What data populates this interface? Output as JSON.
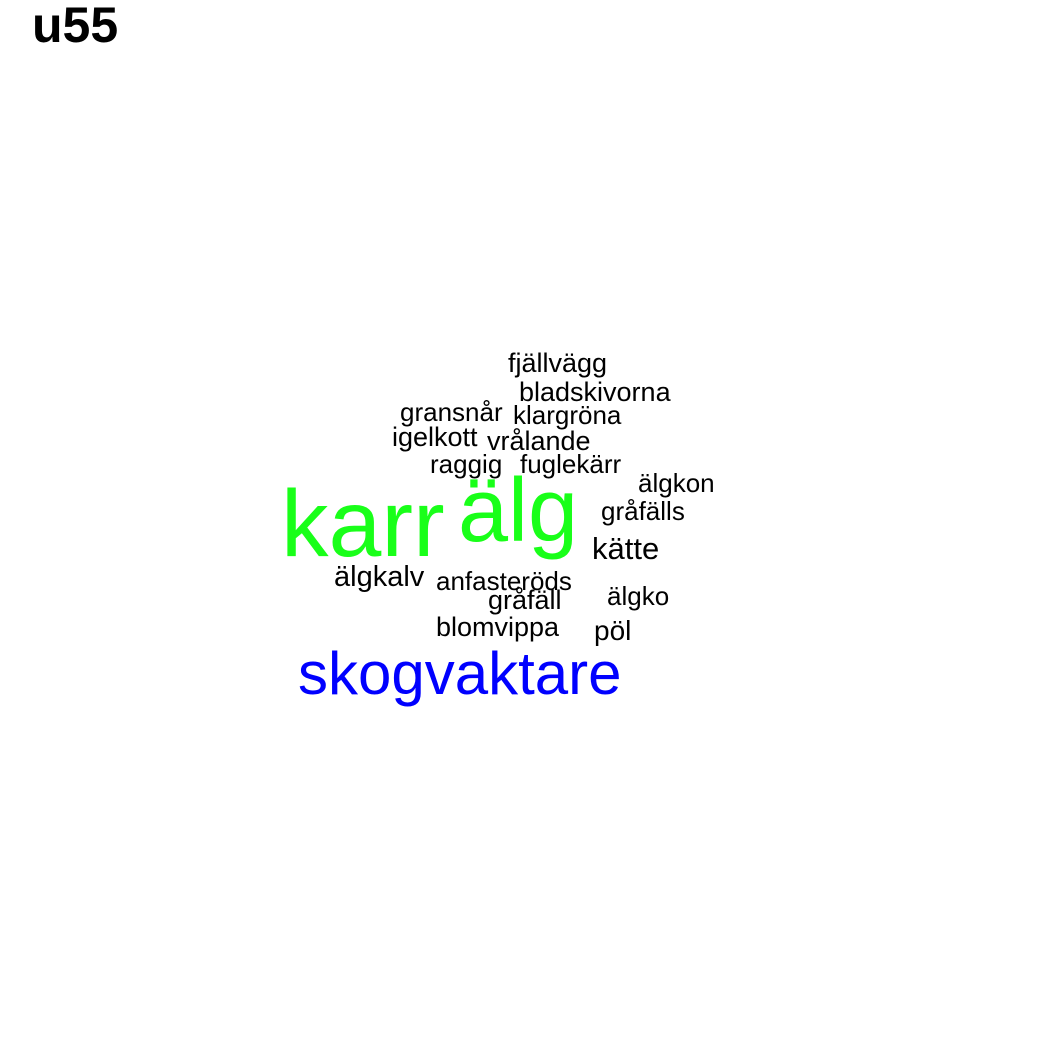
{
  "title": "u55",
  "words": [
    {
      "key": "karr",
      "text": "karr",
      "color": "#19ff19"
    },
    {
      "key": "alg",
      "text": "älg",
      "color": "#19ff19"
    },
    {
      "key": "skogvaktare",
      "text": "skogvaktare",
      "color": "#0000ff"
    },
    {
      "key": "fjallvagg",
      "text": "fjällvägg",
      "color": "#000000"
    },
    {
      "key": "bladskivorna",
      "text": "bladskivorna",
      "color": "#000000"
    },
    {
      "key": "gransnar",
      "text": "gransnår",
      "color": "#000000"
    },
    {
      "key": "klargrona",
      "text": "klargröna",
      "color": "#000000"
    },
    {
      "key": "igelkott",
      "text": "igelkott",
      "color": "#000000"
    },
    {
      "key": "vralande",
      "text": "vrålande",
      "color": "#000000"
    },
    {
      "key": "raggig",
      "text": "raggig",
      "color": "#000000"
    },
    {
      "key": "fuglekarr",
      "text": "fuglekärr",
      "color": "#000000"
    },
    {
      "key": "algkon",
      "text": "älgkon",
      "color": "#000000"
    },
    {
      "key": "grafalls",
      "text": "gråfälls",
      "color": "#000000"
    },
    {
      "key": "katte",
      "text": "kätte",
      "color": "#000000"
    },
    {
      "key": "algkalv",
      "text": "älgkalv",
      "color": "#000000"
    },
    {
      "key": "anfasterods",
      "text": "anfasteröds",
      "color": "#000000"
    },
    {
      "key": "grafall",
      "text": "gråfäll",
      "color": "#000000"
    },
    {
      "key": "algko",
      "text": "älgko",
      "color": "#000000"
    },
    {
      "key": "blomvippa",
      "text": "blomvippa",
      "color": "#000000"
    },
    {
      "key": "pol",
      "text": "pöl",
      "color": "#000000"
    }
  ]
}
